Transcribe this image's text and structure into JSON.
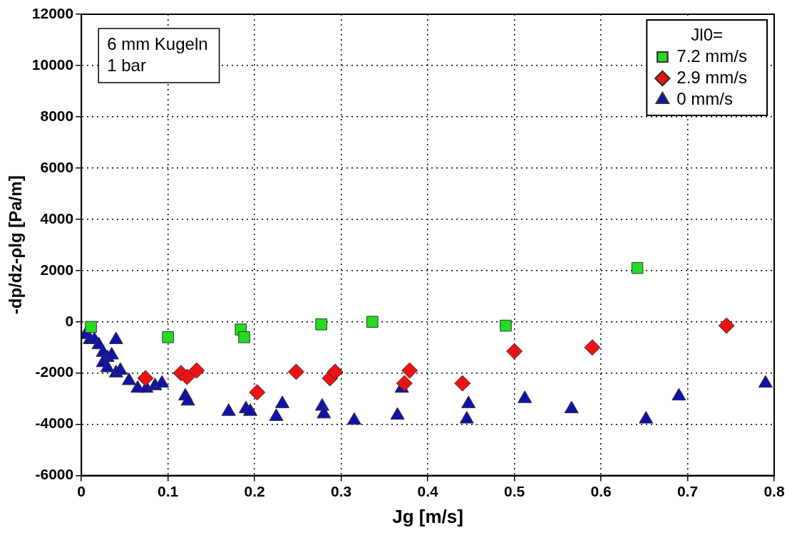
{
  "chart_data": {
    "type": "scatter",
    "xlabel": "Jg [m/s]",
    "ylabel": "-dp/dz-ρlg [Pa/m]",
    "legend_title": "Jl0=",
    "legend": "top right",
    "grid": true,
    "xlim": [
      0,
      0.8
    ],
    "xticks": [
      0,
      0.1,
      0.2,
      0.3,
      0.4,
      0.5,
      0.6,
      0.7,
      0.8
    ],
    "ylim": [
      -6000,
      12000
    ],
    "yticks": [
      -6000,
      -4000,
      -2000,
      0,
      2000,
      4000,
      6000,
      8000,
      10000,
      12000
    ],
    "annotations": [
      "6 mm Kugeln",
      "1 bar"
    ],
    "series": [
      {
        "name": "7.2 mm/s",
        "color": "#22dd22",
        "marker": "square",
        "x": [
          0.011,
          0.1,
          0.184,
          0.188,
          0.277,
          0.336,
          0.49,
          0.642
        ],
        "values": [
          -200,
          -600,
          -300,
          -600,
          -100,
          0,
          -150,
          2100
        ]
      },
      {
        "name": "2.9 mm/s",
        "color": "#ee1111",
        "marker": "diamond",
        "x": [
          0.074,
          0.115,
          0.122,
          0.133,
          0.203,
          0.248,
          0.287,
          0.293,
          0.373,
          0.379,
          0.44,
          0.5,
          0.59,
          0.745
        ],
        "values": [
          -2200,
          -2000,
          -2150,
          -1900,
          -2750,
          -1950,
          -2200,
          -1950,
          -2400,
          -1900,
          -2400,
          -1150,
          -1000,
          -150
        ]
      },
      {
        "name": "0 mm/s",
        "color": "#1111aa",
        "marker": "triangle",
        "x": [
          0.005,
          0.01,
          0.015,
          0.02,
          0.025,
          0.03,
          0.035,
          0.025,
          0.03,
          0.04,
          0.04,
          0.045,
          0.055,
          0.065,
          0.075,
          0.085,
          0.093,
          0.12,
          0.123,
          0.17,
          0.19,
          0.195,
          0.225,
          0.232,
          0.278,
          0.28,
          0.315,
          0.365,
          0.37,
          0.445,
          0.447,
          0.512,
          0.566,
          0.652,
          0.69,
          0.79
        ],
        "values": [
          -500,
          -700,
          -700,
          -900,
          -1200,
          -1400,
          -1300,
          -1600,
          -1800,
          -700,
          -2000,
          -1900,
          -2300,
          -2600,
          -2600,
          -2500,
          -2400,
          -2900,
          -3100,
          -3500,
          -3400,
          -3500,
          -3700,
          -3200,
          -3300,
          -3600,
          -3850,
          -3650,
          -2600,
          -3800,
          -3200,
          -3000,
          -3400,
          -3800,
          -2900,
          -2400
        ]
      }
    ]
  }
}
